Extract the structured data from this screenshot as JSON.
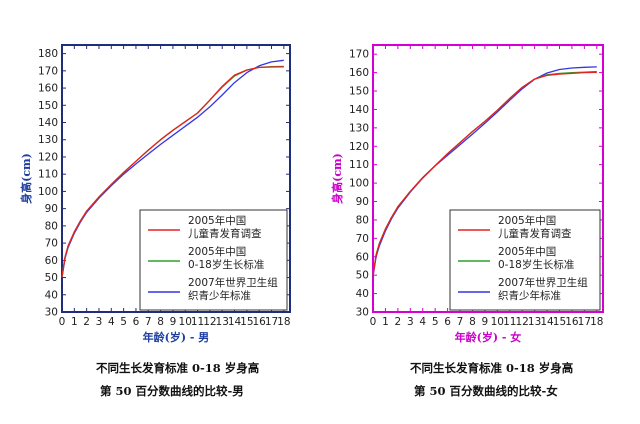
{
  "charts": [
    {
      "frame_color": "#1f2d7a",
      "label_color": "#1f3fa0",
      "ylabel": "身高(cm)",
      "xlabel": "年龄(岁) - 男",
      "caption_line1": "不同生长发育标准 0-18 岁身高",
      "caption_line2": "第 50 百分数曲线的比较-男"
    },
    {
      "frame_color": "#d400d4",
      "label_color": "#cc00cc",
      "ylabel": "身高(cm)",
      "xlabel": "年龄(岁) - 女",
      "caption_line1": "不同生长发育标准 0-18 岁身高",
      "caption_line2": "第 50 百分数曲线的比较-女"
    }
  ],
  "chart_data": [
    {
      "type": "line",
      "xlabel": "年龄(岁) - 男",
      "ylabel": "身高(cm)",
      "xlim": [
        0,
        18.5
      ],
      "ylim": [
        30,
        185
      ],
      "x_ticks": [
        "0",
        "1",
        "2",
        "3",
        "4",
        "5",
        "6",
        "7",
        "8",
        "9",
        "10",
        "11",
        "12",
        "13",
        "14",
        "15",
        "16",
        "17",
        "18"
      ],
      "y_ticks": [
        "30",
        "40",
        "50",
        "60",
        "70",
        "80",
        "90",
        "100",
        "110",
        "120",
        "130",
        "140",
        "150",
        "160",
        "170",
        "180"
      ],
      "grid": false,
      "legend_position": "bottom-right",
      "series": [
        {
          "name": "2005年中国儿童青发育调查",
          "color": "#e8201e",
          "x": [
            0,
            0.25,
            0.5,
            1,
            1.5,
            2,
            3,
            4,
            5,
            6,
            7,
            8,
            9,
            10,
            11,
            12,
            13,
            14,
            15,
            16,
            17,
            18
          ],
          "y": [
            50.4,
            62,
            68.5,
            76.5,
            83,
            88.5,
            96.8,
            104,
            111,
            117.5,
            124,
            130,
            135.5,
            140.5,
            145.5,
            153,
            161,
            167.5,
            170.5,
            172,
            172.2,
            172.3
          ]
        },
        {
          "name": "2005年中国0-18岁生长标准",
          "color": "#2ea02e",
          "x": [
            0,
            0.25,
            0.5,
            1,
            1.5,
            2,
            3,
            4,
            5,
            6,
            7,
            8,
            9,
            10,
            11,
            12,
            13,
            14,
            15,
            16,
            17,
            18
          ],
          "y": [
            50.4,
            62,
            68.5,
            76.5,
            83,
            88.5,
            96.8,
            104,
            111,
            117.5,
            124,
            130,
            135.5,
            140.5,
            145.5,
            153,
            160.5,
            167,
            170.5,
            172,
            172.4,
            172.6
          ]
        },
        {
          "name": "2007年世界卫生组织青少年标准",
          "color": "#3535e6",
          "x": [
            0,
            0.25,
            0.5,
            1,
            1.5,
            2,
            3,
            4,
            5,
            6,
            7,
            8,
            9,
            10,
            11,
            12,
            13,
            14,
            15,
            16,
            17,
            18
          ],
          "y": [
            49.9,
            61.4,
            67.6,
            75.7,
            82.3,
            87.8,
            96.1,
            103.3,
            110,
            116,
            121.7,
            127.3,
            132.6,
            137.8,
            143.1,
            149.1,
            156,
            163.2,
            169,
            172.9,
            175.2,
            176.1
          ]
        }
      ]
    },
    {
      "type": "line",
      "xlabel": "年龄(岁) - 女",
      "ylabel": "身高(cm)",
      "xlim": [
        0,
        18.5
      ],
      "ylim": [
        30,
        175
      ],
      "x_ticks": [
        "0",
        "1",
        "2",
        "3",
        "4",
        "5",
        "6",
        "7",
        "8",
        "9",
        "10",
        "11",
        "12",
        "13",
        "14",
        "15",
        "16",
        "17",
        "18"
      ],
      "y_ticks": [
        "30",
        "40",
        "50",
        "60",
        "70",
        "80",
        "90",
        "100",
        "110",
        "120",
        "130",
        "140",
        "150",
        "160",
        "170"
      ],
      "grid": false,
      "legend_position": "bottom-right",
      "series": [
        {
          "name": "2005年中国儿童青发育调查",
          "color": "#e8201e",
          "x": [
            0,
            0.25,
            0.5,
            1,
            1.5,
            2,
            3,
            4,
            5,
            6,
            7,
            8,
            9,
            10,
            11,
            12,
            13,
            14,
            15,
            16,
            17,
            18
          ],
          "y": [
            49.7,
            61,
            67,
            75,
            81.5,
            87.2,
            95.5,
            103,
            109.5,
            116,
            122,
            128,
            133.5,
            139.5,
            146,
            152,
            156.5,
            158.5,
            159.2,
            159.6,
            160,
            160.2
          ]
        },
        {
          "name": "2005年中国0-18岁生长标准",
          "color": "#2ea02e",
          "x": [
            0,
            0.25,
            0.5,
            1,
            1.5,
            2,
            3,
            4,
            5,
            6,
            7,
            8,
            9,
            10,
            11,
            12,
            13,
            14,
            15,
            16,
            17,
            18
          ],
          "y": [
            49.7,
            61,
            67,
            75,
            81.5,
            87.2,
            95.5,
            103,
            109.5,
            116,
            122,
            128,
            133.5,
            139.5,
            146,
            152,
            156.5,
            158.8,
            159.6,
            160,
            160.3,
            160.6
          ]
        },
        {
          "name": "2007年世界卫生组织青少年标准",
          "color": "#3535e6",
          "x": [
            0,
            0.25,
            0.5,
            1,
            1.5,
            2,
            3,
            4,
            5,
            6,
            7,
            8,
            9,
            10,
            11,
            12,
            13,
            14,
            15,
            16,
            17,
            18
          ],
          "y": [
            49.1,
            60,
            65.7,
            74,
            80.7,
            86.4,
            95.1,
            102.7,
            109.4,
            115.1,
            120.8,
            126.6,
            132.5,
            138.6,
            145,
            151.2,
            156.4,
            159.8,
            161.7,
            162.5,
            162.9,
            163.1
          ]
        }
      ]
    }
  ]
}
